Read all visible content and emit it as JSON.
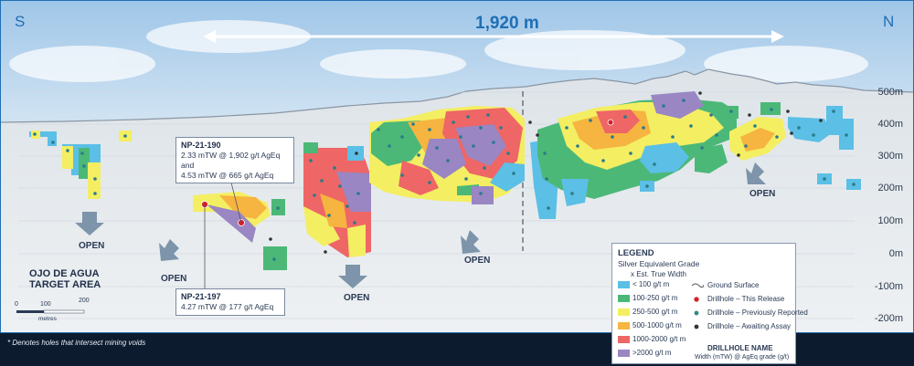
{
  "compass": {
    "south": "S",
    "north": "N"
  },
  "length_label": "1,920 m",
  "elevation_labels": [
    "500m",
    "400m",
    "300m",
    "200m",
    "100m",
    "0m",
    "-100m",
    "-200m"
  ],
  "open_label": "OPEN",
  "area_label": [
    "OJO DE AGUA",
    "TARGET AREA"
  ],
  "callouts": [
    {
      "name": "NP-21-190",
      "lines": [
        "2.33 mTW @ 1,902 g/t AgEq and",
        "4.53 mTW @ 665 g/t AgEq"
      ]
    },
    {
      "name": "NP-21-197",
      "lines": [
        "4.27 mTW @ 177 g/t AgEq"
      ]
    }
  ],
  "scale_bar": {
    "ticks": [
      "0",
      "100",
      "200"
    ],
    "unit": "metres"
  },
  "legend": {
    "title": "LEGEND",
    "subtitle": "Silver Equivalent Grade",
    "subtitle2": "x Est. True Width",
    "grades": [
      {
        "label": "< 100 g/t m",
        "color": "#5bbfe6"
      },
      {
        "label": "100-250 g/t m",
        "color": "#4cb878"
      },
      {
        "label": "250-500 g/t m",
        "color": "#f4ee62"
      },
      {
        "label": "500-1000 g/t m",
        "color": "#f6b440"
      },
      {
        "label": "1000-2000 g/t m",
        "color": "#ee6666"
      },
      {
        "label": ">2000 g/t m",
        "color": "#9a86c2"
      }
    ],
    "symbols": [
      {
        "label": "Ground Surface"
      },
      {
        "label": "Drillhole – This Release",
        "color": "#d6202a"
      },
      {
        "label": "Drillhole – Previously Reported",
        "color": "#2a8a8a"
      },
      {
        "label": "Drillhole – Awaiting Assay",
        "color": "#333333"
      }
    ],
    "name_title": "DRILLHOLE NAME",
    "name_desc": "Width (mTW) @ AgEq grade (g/t)"
  },
  "footnote": "* Denotes holes that intersect mining voids"
}
